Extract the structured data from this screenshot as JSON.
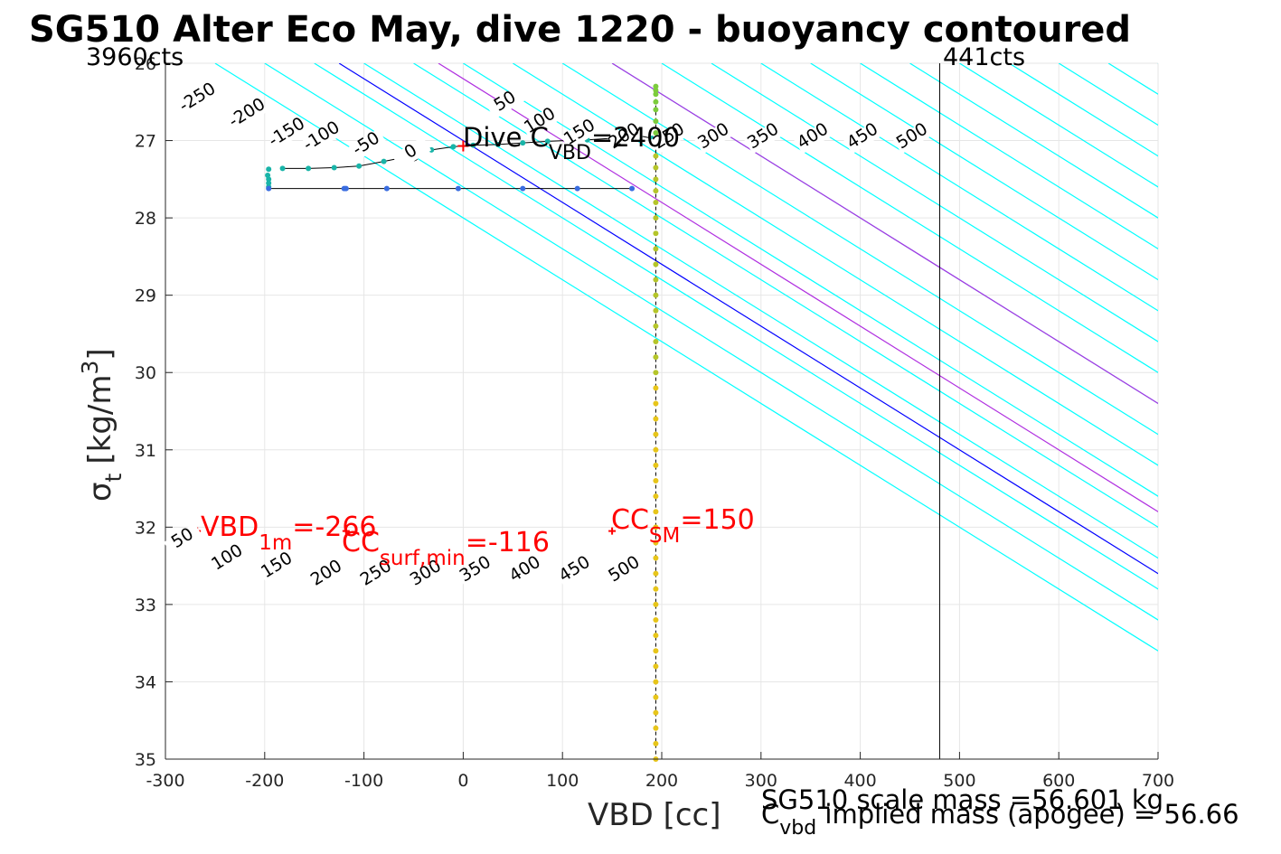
{
  "title": "SG510 Alter Eco May, dive 1220 - buoyancy contoured",
  "colors": {
    "cyan": "#00ffff",
    "magenta": "#b030e0",
    "blue": "#0000ff",
    "red": "#ff0000",
    "grid": "#e6e6e6",
    "axis": "#262626"
  },
  "chart_data": {
    "type": "scatter",
    "xlabel": "VBD [cc]",
    "ylabel": "σ",
    "ylabel_sub": "t",
    "ylabel_units": "[kg/m",
    "ylabel_units_sup": "3",
    "ylabel_units_end": "]",
    "xlim": [
      -300,
      700
    ],
    "ylim": [
      26,
      35
    ],
    "y_reversed": true,
    "grid": true,
    "xticks": [
      -300,
      -200,
      -100,
      0,
      100,
      200,
      300,
      400,
      500,
      600,
      700
    ],
    "yticks": [
      26,
      27,
      28,
      29,
      30,
      31,
      32,
      33,
      34,
      35
    ],
    "corner_labels": {
      "left": "3960cts",
      "right": "441cts"
    },
    "count_limit_line_x": 480,
    "contours": {
      "slope_cc_per_sigma": 125,
      "cyan_levels": [
        -250,
        -200,
        -150,
        -100,
        -50,
        0,
        50,
        100,
        150,
        200,
        250,
        300,
        350,
        400,
        450,
        500,
        550,
        600,
        650,
        700,
        750,
        800,
        850,
        900
      ],
      "magenta_levels": [
        -25,
        150
      ],
      "blue_level": -125,
      "top_labels": [
        {
          "text": "-250",
          "x": -265,
          "y": 26.5
        },
        {
          "text": "-200",
          "x": -215,
          "y": 26.7
        },
        {
          "text": "-150",
          "x": -175,
          "y": 26.95
        },
        {
          "text": "-100",
          "x": -140,
          "y": 27.0
        },
        {
          "text": "-50",
          "x": -95,
          "y": 27.1
        },
        {
          "text": "0",
          "x": -50,
          "y": 27.2
        },
        {
          "text": "50",
          "x": 45,
          "y": 26.55
        },
        {
          "text": "100",
          "x": 80,
          "y": 26.8
        },
        {
          "text": "150",
          "x": 120,
          "y": 26.95
        },
        {
          "text": "200",
          "x": 165,
          "y": 27.0
        },
        {
          "text": "250",
          "x": 210,
          "y": 27.0
        },
        {
          "text": "300",
          "x": 255,
          "y": 27.0
        },
        {
          "text": "350",
          "x": 305,
          "y": 27.0
        },
        {
          "text": "400",
          "x": 355,
          "y": 27.0
        },
        {
          "text": "450",
          "x": 405,
          "y": 27.0
        },
        {
          "text": "500",
          "x": 455,
          "y": 27.0
        }
      ],
      "bottom_labels": [
        {
          "text": "50",
          "x": -280,
          "y": 32.2
        },
        {
          "text": "100",
          "x": -235,
          "y": 32.45
        },
        {
          "text": "150",
          "x": -185,
          "y": 32.55
        },
        {
          "text": "200",
          "x": -135,
          "y": 32.65
        },
        {
          "text": "250",
          "x": -85,
          "y": 32.65
        },
        {
          "text": "300",
          "x": -35,
          "y": 32.65
        },
        {
          "text": "350",
          "x": 15,
          "y": 32.6
        },
        {
          "text": "400",
          "x": 65,
          "y": 32.6
        },
        {
          "text": "450",
          "x": 115,
          "y": 32.6
        },
        {
          "text": "500",
          "x": 165,
          "y": 32.6
        }
      ]
    },
    "series": [
      {
        "role": "descent",
        "color": "#19b4a8",
        "points": [
          [
            -196,
            27.37
          ],
          [
            -197,
            27.45
          ],
          [
            -196,
            27.5
          ],
          [
            -196,
            27.55
          ],
          [
            -196,
            27.6
          ],
          [
            -182,
            27.36
          ],
          [
            -156,
            27.36
          ],
          [
            -130,
            27.35
          ],
          [
            -105,
            27.33
          ],
          [
            -80,
            27.27
          ],
          [
            -53,
            27.2
          ],
          [
            -32,
            27.12
          ],
          [
            -10,
            27.08
          ],
          [
            10,
            27.06
          ],
          [
            35,
            27.05
          ],
          [
            60,
            27.03
          ],
          [
            85,
            27.01
          ],
          [
            105,
            27.0
          ],
          [
            125,
            26.99
          ],
          [
            150,
            26.97
          ],
          [
            170,
            26.95
          ],
          [
            178,
            26.94
          ],
          [
            190,
            26.97
          ]
        ]
      },
      {
        "role": "climb",
        "color": "#3a6de0",
        "points": [
          [
            -196,
            27.62
          ],
          [
            -120,
            27.62
          ],
          [
            -118,
            27.62
          ],
          [
            -77,
            27.62
          ],
          [
            -5,
            27.62
          ],
          [
            60,
            27.62
          ],
          [
            115,
            27.62
          ],
          [
            170,
            27.62
          ]
        ]
      },
      {
        "role": "depth-profile",
        "color": "#d4c013",
        "points": [
          [
            194,
            26.3
          ],
          [
            194,
            26.35
          ],
          [
            194,
            26.4
          ],
          [
            194,
            26.5
          ],
          [
            194,
            26.6
          ],
          [
            194,
            26.75
          ],
          [
            194,
            26.9
          ],
          [
            194,
            27.05
          ],
          [
            194,
            27.2
          ],
          [
            194,
            27.35
          ],
          [
            194,
            27.5
          ],
          [
            194,
            27.65
          ],
          [
            194,
            27.8
          ],
          [
            194,
            28.0
          ],
          [
            194,
            28.2
          ],
          [
            194,
            28.4
          ],
          [
            194,
            28.6
          ],
          [
            194,
            28.8
          ],
          [
            194,
            29.0
          ],
          [
            194,
            29.2
          ],
          [
            194,
            29.4
          ],
          [
            194,
            29.6
          ],
          [
            194,
            29.8
          ],
          [
            194,
            30.0
          ],
          [
            194,
            30.2
          ],
          [
            194,
            30.4
          ],
          [
            194,
            30.6
          ],
          [
            194,
            30.8
          ],
          [
            194,
            31.0
          ],
          [
            194,
            31.2
          ],
          [
            194,
            31.4
          ],
          [
            194,
            31.6
          ],
          [
            194,
            31.8
          ],
          [
            194,
            32.0
          ],
          [
            194,
            32.2
          ],
          [
            194,
            32.4
          ],
          [
            194,
            32.6
          ],
          [
            194,
            32.8
          ],
          [
            194,
            33.0
          ],
          [
            194,
            33.2
          ],
          [
            194,
            33.4
          ],
          [
            194,
            33.6
          ],
          [
            194,
            33.8
          ],
          [
            194,
            34.0
          ],
          [
            194,
            34.2
          ],
          [
            194,
            34.4
          ],
          [
            194,
            34.6
          ],
          [
            194,
            34.8
          ],
          [
            194,
            35.0
          ]
        ]
      }
    ],
    "markers": {
      "dive_c": {
        "x": 0,
        "y": 27.07
      },
      "circle": {
        "x": -50,
        "y": 27.2
      },
      "vbd1m": {
        "x": -268,
        "y": 32.05
      },
      "cc_surf_min": {
        "x": -118,
        "y": 32.05
      },
      "cc_sm": {
        "x": 150,
        "y": 32.05
      }
    },
    "annotations": {
      "dive_c": {
        "main": "Dive C",
        "sub": "VBD",
        "end": "=2400"
      },
      "vbd1m": {
        "main": "VBD",
        "sub": "1m",
        "end": "=-266"
      },
      "cc_surf_min": {
        "main": "CC",
        "sub": "surf,min",
        "end": "=-116"
      },
      "cc_sm": {
        "main": "CC",
        "sub": "SM",
        "end": "=150"
      }
    },
    "footer": {
      "scale_mass": "SG510 scale mass =56.601 kg",
      "implied_main": "C",
      "implied_sub": "vbd",
      "implied_end": " implied mass (apogee) = 56.66"
    }
  }
}
